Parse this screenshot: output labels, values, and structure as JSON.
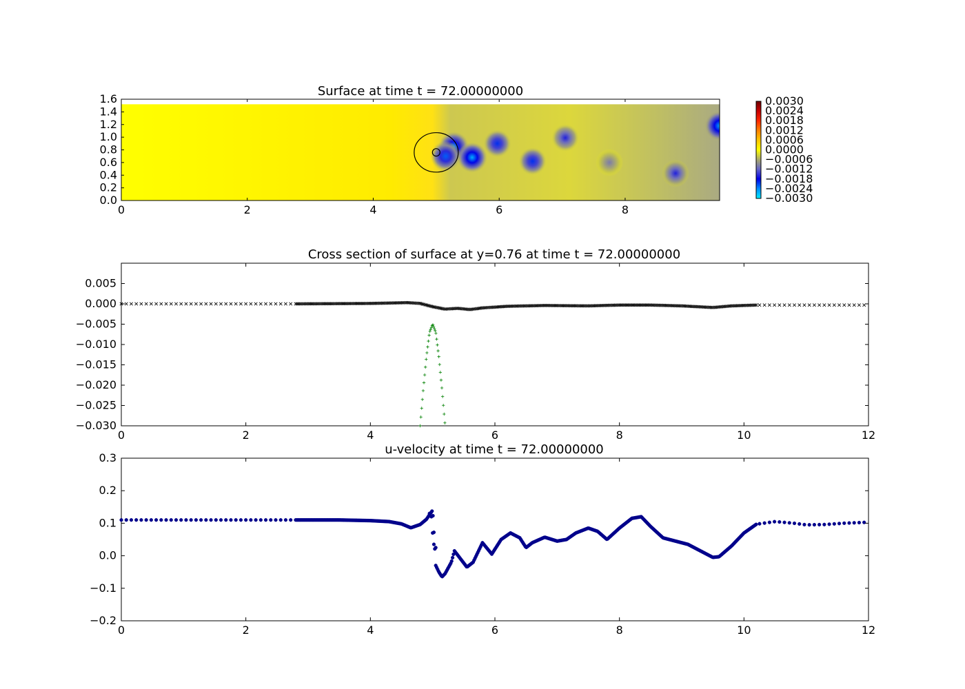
{
  "chart_data": [
    {
      "type": "heatmap",
      "title": "Surface at time t =    72.00000000",
      "xlim": [
        0,
        9.5
      ],
      "ylim": [
        0,
        1.6
      ],
      "x_ticks": [
        "0",
        "2",
        "4",
        "6",
        "8"
      ],
      "y_ticks": [
        "0.0",
        "0.2",
        "0.4",
        "0.6",
        "0.8",
        "1.0",
        "1.2",
        "1.4",
        "1.6"
      ],
      "colorbar": {
        "range": [
          -0.003,
          0.003
        ],
        "ticks": [
          "0.0030",
          "0.0024",
          "0.0018",
          "0.0012",
          "0.0006",
          "0.0000",
          "−0.0006",
          "−0.0012",
          "−0.0018",
          "−0.0024",
          "−0.0030"
        ]
      },
      "domain_top": 1.52,
      "circle": {
        "center": [
          5.0,
          0.76
        ],
        "radius": 0.35
      },
      "inner_circle": {
        "center": [
          5.0,
          0.76
        ],
        "radius": 0.06
      },
      "depressions": [
        {
          "x": 5.28,
          "y": 0.85,
          "depth": -0.0024
        },
        {
          "x": 5.15,
          "y": 0.7,
          "depth": -0.0022
        },
        {
          "x": 5.57,
          "y": 0.68,
          "depth": -0.0026
        },
        {
          "x": 5.97,
          "y": 0.9,
          "depth": -0.002
        },
        {
          "x": 6.53,
          "y": 0.62,
          "depth": -0.002
        },
        {
          "x": 7.05,
          "y": 0.99,
          "depth": -0.0016
        },
        {
          "x": 7.75,
          "y": 0.6,
          "depth": -0.001
        },
        {
          "x": 8.8,
          "y": 0.43,
          "depth": -0.0016
        },
        {
          "x": 9.5,
          "y": 1.18,
          "depth": -0.0026
        }
      ]
    },
    {
      "type": "scatter",
      "title": "Cross section of surface at y=0.76 at time t =    72.00000000",
      "xlim": [
        0,
        12
      ],
      "ylim": [
        -0.03,
        0.01
      ],
      "x_ticks": [
        "0",
        "2",
        "4",
        "6",
        "8",
        "10",
        "12"
      ],
      "y_ticks": [
        "0.005",
        "0.000",
        "−0.005",
        "−0.010",
        "−0.015",
        "−0.020",
        "−0.025",
        "−0.030"
      ],
      "series": [
        {
          "color": "#000000",
          "marker": "x",
          "x": [
            0,
            2.8,
            4.0,
            4.3,
            4.6,
            4.8,
            5.0,
            5.2,
            5.4,
            5.6,
            5.8,
            6.2,
            6.8,
            7.5,
            8.0,
            8.5,
            9.0,
            9.5,
            9.8,
            10.2,
            12.0
          ],
          "y": [
            0.0,
            0.0,
            0.0001,
            0.0002,
            0.0003,
            0.0001,
            -0.0007,
            -0.0013,
            -0.0011,
            -0.0014,
            -0.001,
            -0.0006,
            -0.0004,
            -0.0005,
            -0.0003,
            -0.0003,
            -0.0005,
            -0.0009,
            -0.0005,
            -0.0003,
            -0.0003
          ]
        },
        {
          "color": "#008000",
          "marker": "+",
          "x": [
            4.8,
            4.85,
            4.9,
            4.95,
            5.0,
            5.05,
            5.1,
            5.15,
            5.2
          ],
          "y": [
            -0.03,
            -0.021,
            -0.013,
            -0.007,
            -0.005,
            -0.007,
            -0.013,
            -0.021,
            -0.03
          ]
        }
      ]
    },
    {
      "type": "scatter",
      "title": "u-velocity at time t =    72.00000000",
      "xlim": [
        0,
        12
      ],
      "ylim": [
        -0.2,
        0.3
      ],
      "x_ticks": [
        "0",
        "2",
        "4",
        "6",
        "8",
        "10",
        "12"
      ],
      "y_ticks": [
        "0.3",
        "0.2",
        "0.1",
        "0.0",
        "−0.1",
        "−0.2"
      ],
      "series": [
        {
          "color": "#00008b",
          "marker": "o",
          "x": [
            0,
            1,
            2,
            2.8,
            3.5,
            4.0,
            4.3,
            4.5,
            4.65,
            4.8,
            4.9,
            5.0,
            5.05,
            5.1,
            5.15,
            5.2,
            5.3,
            5.35,
            5.45,
            5.55,
            5.65,
            5.8,
            5.95,
            6.1,
            6.25,
            6.4,
            6.5,
            6.6,
            6.8,
            7.0,
            7.15,
            7.3,
            7.5,
            7.65,
            7.8,
            8.0,
            8.2,
            8.35,
            8.5,
            8.7,
            8.9,
            9.1,
            9.3,
            9.5,
            9.6,
            9.8,
            10.0,
            10.2,
            10.5,
            10.8,
            11.0,
            11.3,
            11.6,
            12.0
          ],
          "y": [
            0.11,
            0.11,
            0.11,
            0.11,
            0.11,
            0.108,
            0.105,
            0.098,
            0.086,
            0.096,
            0.112,
            0.14,
            -0.03,
            -0.05,
            -0.065,
            -0.055,
            -0.02,
            0.015,
            -0.01,
            -0.035,
            -0.02,
            0.04,
            0.005,
            0.05,
            0.07,
            0.055,
            0.025,
            0.04,
            0.057,
            0.045,
            0.05,
            0.07,
            0.085,
            0.075,
            0.05,
            0.085,
            0.115,
            0.12,
            0.09,
            0.055,
            0.045,
            0.035,
            0.015,
            -0.005,
            -0.003,
            0.03,
            0.07,
            0.097,
            0.105,
            0.1,
            0.095,
            0.096,
            0.1,
            0.103
          ]
        },
        {
          "color": "#00008b",
          "marker": "o",
          "x": [
            4.98,
            5.0,
            5.02,
            4.95,
            5.05
          ],
          "y": [
            0.12,
            0.07,
            0.035,
            0.13,
            0.025
          ]
        }
      ]
    }
  ]
}
